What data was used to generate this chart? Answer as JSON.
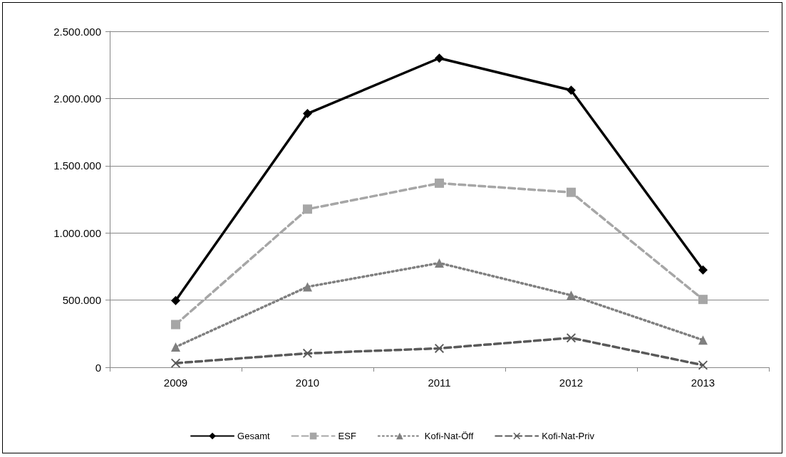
{
  "chart_data": {
    "type": "line",
    "categories": [
      "2009",
      "2010",
      "2011",
      "2012",
      "2013"
    ],
    "series": [
      {
        "name": "Gesamt",
        "color": "#000000",
        "marker": "diamond",
        "line_style": "solid",
        "values": [
          497000,
          1888000,
          2300000,
          2062000,
          724000
        ]
      },
      {
        "name": "ESF",
        "color": "#a6a6a6",
        "marker": "square",
        "line_style": "dashed",
        "values": [
          318000,
          1177000,
          1370000,
          1302000,
          505000
        ]
      },
      {
        "name": "Kofi-Nat-Öff",
        "color": "#7f7f7f",
        "marker": "triangle",
        "line_style": "dotted",
        "values": [
          151000,
          599000,
          776000,
          536000,
          203000
        ]
      },
      {
        "name": "Kofi-Nat-Priv",
        "color": "#595959",
        "marker": "cross",
        "line_style": "dashed",
        "values": [
          31000,
          104000,
          141000,
          219000,
          16000
        ]
      }
    ],
    "ylim": [
      0,
      2500000
    ],
    "yticks": [
      0,
      {
        "value": 500000,
        "label": "500.000"
      },
      {
        "value": 1000000,
        "label": "1.000.000"
      },
      {
        "value": 1500000,
        "label": "1.500.000"
      },
      {
        "value": 2000000,
        "label": "2.000.000"
      },
      {
        "value": 2500000,
        "label": "2.500.000"
      }
    ],
    "grid": "y",
    "legend": "bottom"
  }
}
